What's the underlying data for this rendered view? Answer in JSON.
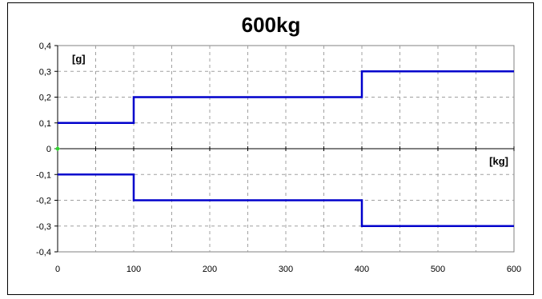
{
  "chart_data": {
    "type": "line",
    "title": "600kg",
    "y_unit_label": "[g]",
    "x_unit_label": "[kg]",
    "xlim": [
      0,
      600
    ],
    "ylim": [
      -0.4,
      0.4
    ],
    "x_ticks": [
      0,
      100,
      200,
      300,
      400,
      500,
      600
    ],
    "x_minor_ticks": [
      50,
      150,
      250,
      350,
      450,
      550
    ],
    "y_ticks": [
      -0.4,
      -0.3,
      -0.2,
      -0.1,
      0,
      0.1,
      0.2,
      0.3,
      0.4
    ],
    "y_tick_labels": [
      "-0,4",
      "-0,3",
      "-0,2",
      "-0,1",
      "0",
      "0,1",
      "0,2",
      "0,3",
      "0,4"
    ],
    "grid": true,
    "series": [
      {
        "color": "#0000cc",
        "step": true,
        "x": [
          0,
          100,
          100,
          400,
          400,
          600
        ],
        "y": [
          0.1,
          0.1,
          0.2,
          0.2,
          0.3,
          0.3
        ]
      },
      {
        "color": "#0000cc",
        "step": true,
        "x": [
          0,
          100,
          100,
          400,
          400,
          600
        ],
        "y": [
          -0.1,
          -0.1,
          -0.2,
          -0.2,
          -0.3,
          -0.3
        ]
      }
    ],
    "origin_marker_color": "#33cc33"
  }
}
